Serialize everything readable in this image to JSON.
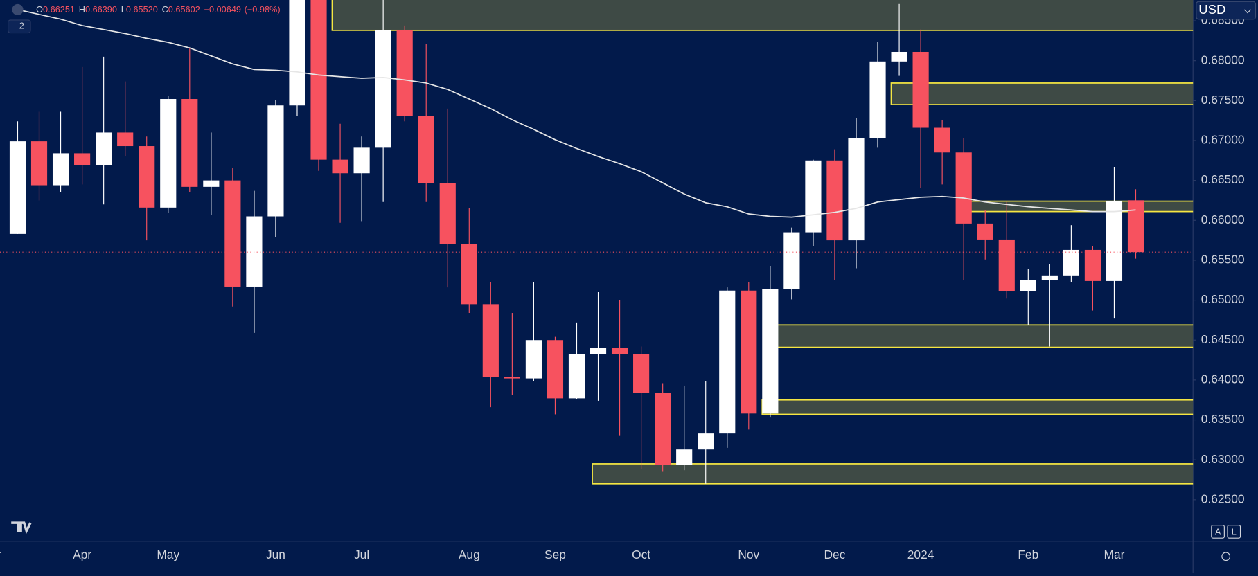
{
  "chart_data": {
    "type": "candlestick",
    "header": {
      "ohlc": [
        {
          "label": "O",
          "value": "0.66251"
        },
        {
          "label": "H",
          "value": "0.66390"
        },
        {
          "label": "L",
          "value": "0.65520"
        },
        {
          "label": "C",
          "value": "0.65602"
        }
      ],
      "change": "−0.00649",
      "change_pct": "(−0.98%)",
      "indicator_count": "2"
    },
    "currency": "USD",
    "buttons": [
      "A",
      "L"
    ],
    "categories": [
      null,
      null,
      null,
      "Apr",
      null,
      null,
      null,
      "May",
      null,
      null,
      null,
      null,
      "Jun",
      null,
      null,
      null,
      "Jul",
      null,
      null,
      null,
      null,
      "Aug",
      null,
      null,
      null,
      "Sep",
      null,
      null,
      null,
      "Oct",
      null,
      null,
      null,
      null,
      "Nov",
      null,
      null,
      null,
      "Dec",
      null,
      null,
      null,
      "2024",
      null,
      null,
      null,
      null,
      "Feb",
      null,
      null,
      null,
      "Mar",
      null
    ],
    "open": [
      0.6583,
      0.6699,
      0.6644,
      0.6684,
      0.6669,
      0.671,
      0.6693,
      0.6616,
      0.6752,
      0.6642,
      0.665,
      0.6517,
      0.6605,
      0.6744,
      0.688,
      0.6676,
      0.6659,
      0.6691,
      0.6838,
      0.6731,
      0.6647,
      0.657,
      0.6495,
      0.6404,
      0.6402,
      0.645,
      0.6377,
      0.6432,
      0.644,
      0.6432,
      0.6384,
      0.6294,
      0.6313,
      0.6333,
      0.6512,
      0.6358,
      0.6514,
      0.6585,
      0.6675,
      0.6575,
      0.6703,
      0.6799,
      0.6811,
      0.6716,
      0.6685,
      0.6596,
      0.6576,
      0.6511,
      0.6525,
      0.6531,
      0.6563,
      0.6524,
      0.66251
    ],
    "high": [
      0.6724,
      0.6736,
      0.6736,
      0.6792,
      0.6805,
      0.6774,
      0.6705,
      0.6756,
      0.6816,
      0.671,
      0.6666,
      0.6637,
      0.6751,
      0.689,
      0.689,
      0.6721,
      0.6705,
      0.689,
      0.6844,
      0.6821,
      0.674,
      0.6615,
      0.6523,
      0.6484,
      0.6523,
      0.6454,
      0.6472,
      0.651,
      0.65,
      0.6442,
      0.6396,
      0.6393,
      0.6399,
      0.6516,
      0.6523,
      0.6543,
      0.6591,
      0.6676,
      0.6689,
      0.6728,
      0.6824,
      0.6871,
      0.6839,
      0.6726,
      0.6703,
      0.6613,
      0.6623,
      0.6539,
      0.6545,
      0.6594,
      0.6568,
      0.6667,
      0.6639
    ],
    "low": [
      0.6583,
      0.6625,
      0.6635,
      0.6645,
      0.662,
      0.668,
      0.6575,
      0.6609,
      0.6635,
      0.6607,
      0.6492,
      0.6459,
      0.6579,
      0.6731,
      0.6662,
      0.6597,
      0.6599,
      0.6623,
      0.6724,
      0.6623,
      0.6516,
      0.6484,
      0.6366,
      0.6381,
      0.6399,
      0.6357,
      0.6376,
      0.6374,
      0.633,
      0.6288,
      0.6285,
      0.6287,
      0.627,
      0.6315,
      0.6338,
      0.6353,
      0.6501,
      0.6568,
      0.6525,
      0.654,
      0.6691,
      0.6781,
      0.6641,
      0.6645,
      0.6525,
      0.6551,
      0.6502,
      0.6469,
      0.6442,
      0.6523,
      0.6487,
      0.6477,
      0.6552
    ],
    "close": [
      0.6699,
      0.6644,
      0.6684,
      0.6669,
      0.671,
      0.6693,
      0.6616,
      0.6752,
      0.6642,
      0.665,
      0.6517,
      0.6605,
      0.6744,
      0.688,
      0.6676,
      0.6659,
      0.6691,
      0.6838,
      0.6731,
      0.6647,
      0.657,
      0.6495,
      0.6404,
      0.6402,
      0.645,
      0.6377,
      0.6432,
      0.644,
      0.6432,
      0.6384,
      0.6294,
      0.6313,
      0.6333,
      0.6512,
      0.6358,
      0.6514,
      0.6585,
      0.6675,
      0.6575,
      0.6703,
      0.6799,
      0.6811,
      0.6716,
      0.6685,
      0.6596,
      0.6576,
      0.6511,
      0.6525,
      0.6531,
      0.6563,
      0.6524,
      0.6624,
      0.65602
    ],
    "up_color": "#ffffff",
    "down_color": "#f7525f",
    "ma": {
      "color": "#e6e6e6",
      "values": [
        0.6864,
        0.6858,
        0.6852,
        0.6844,
        0.6839,
        0.6834,
        0.6828,
        0.6823,
        0.6816,
        0.6806,
        0.6796,
        0.6789,
        0.6788,
        0.6786,
        0.6782,
        0.678,
        0.6778,
        0.6779,
        0.6776,
        0.6772,
        0.6764,
        0.6752,
        0.674,
        0.6726,
        0.6714,
        0.6701,
        0.669,
        0.668,
        0.6671,
        0.6661,
        0.6647,
        0.6633,
        0.6622,
        0.6617,
        0.6608,
        0.6605,
        0.6604,
        0.6607,
        0.661,
        0.6615,
        0.6623,
        0.6626,
        0.6629,
        0.663,
        0.6628,
        0.6623,
        0.662,
        0.6617,
        0.6615,
        0.6613,
        0.6611,
        0.6611,
        0.6613
      ]
    },
    "zones": [
      {
        "start": 15,
        "low": 0.6838,
        "high": 0.688
      },
      {
        "start": 41,
        "low": 0.6745,
        "high": 0.6772
      },
      {
        "start": 44.6,
        "low": 0.6611,
        "high": 0.6624
      },
      {
        "start": 35.6,
        "low": 0.6441,
        "high": 0.6469
      },
      {
        "start": 35,
        "low": 0.6357,
        "high": 0.6375
      },
      {
        "start": 27.1,
        "low": 0.627,
        "high": 0.6295
      }
    ],
    "zone_fill": "#3e4a45",
    "zone_stroke": "#f5e642",
    "ylim": [
      0.6198,
      0.6876
    ],
    "yticks": [
      {
        "value": 0.625,
        "label": "0.62500"
      },
      {
        "value": 0.63,
        "label": "0.63000"
      },
      {
        "value": 0.635,
        "label": "0.63500"
      },
      {
        "value": 0.64,
        "label": "0.64000"
      },
      {
        "value": 0.645,
        "label": "0.64500"
      },
      {
        "value": 0.65,
        "label": "0.65000"
      },
      {
        "value": 0.655,
        "label": "0.65500"
      },
      {
        "value": 0.66,
        "label": "0.66000"
      },
      {
        "value": 0.665,
        "label": "0.66500"
      },
      {
        "value": 0.67,
        "label": "0.67000"
      },
      {
        "value": 0.675,
        "label": "0.67500"
      },
      {
        "value": 0.68,
        "label": "0.68000"
      },
      {
        "value": 0.685,
        "label": "0.68500"
      }
    ]
  }
}
